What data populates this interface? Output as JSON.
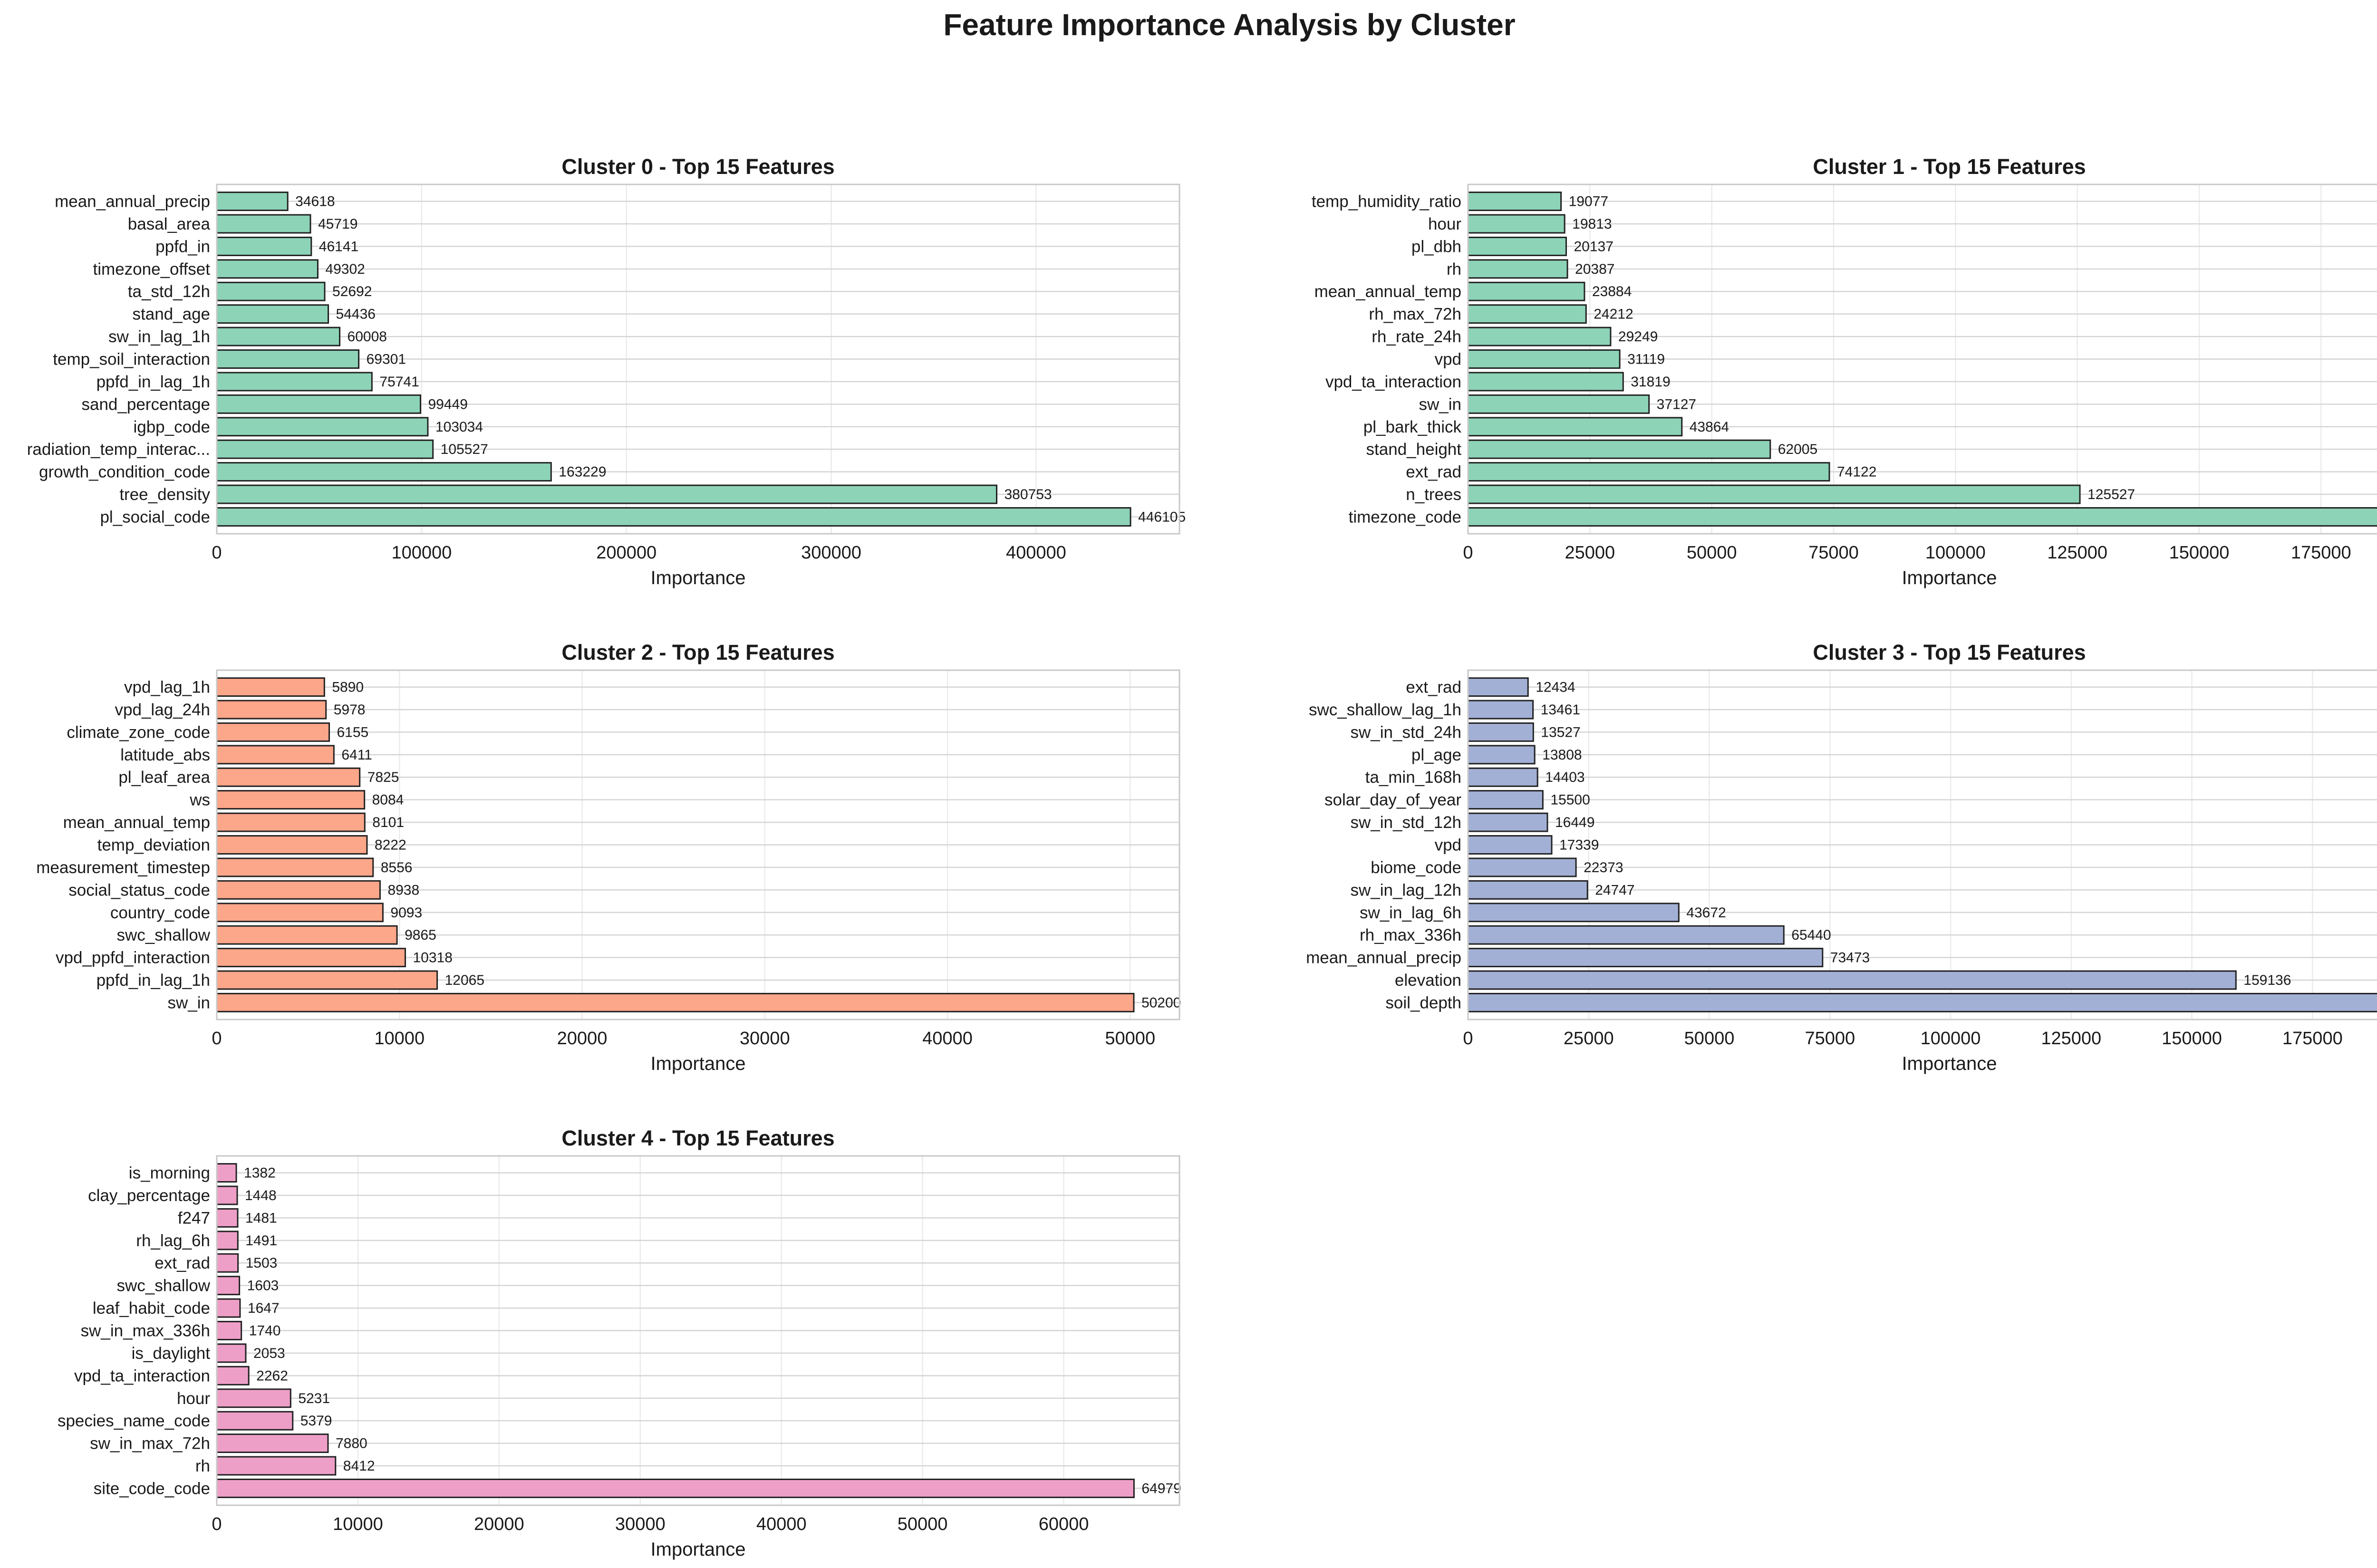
{
  "figure": {
    "title": "Feature Importance Analysis by Cluster"
  },
  "chart_data": [
    {
      "type": "bar",
      "orientation": "horizontal",
      "title": "Cluster 0 - Top 15 Features",
      "xlabel": "Importance",
      "ylabel": "",
      "color": "#8dd3b8",
      "xlim": [
        0,
        470000
      ],
      "xticks": [
        0,
        100000,
        200000,
        300000,
        400000
      ],
      "grid": true,
      "categories": [
        "mean_annual_precip",
        "basal_area",
        "ppfd_in",
        "timezone_offset",
        "ta_std_12h",
        "stand_age",
        "sw_in_lag_1h",
        "temp_soil_interaction",
        "ppfd_in_lag_1h",
        "sand_percentage",
        "igbp_code",
        "radiation_temp_interac...",
        "growth_condition_code",
        "tree_density",
        "pl_social_code"
      ],
      "values": [
        34618,
        45719,
        46141,
        49302,
        52692,
        54436,
        60008,
        69301,
        75741,
        99449,
        103034,
        105527,
        163229,
        380753,
        446105
      ]
    },
    {
      "type": "bar",
      "orientation": "horizontal",
      "title": "Cluster 1 - Top 15 Features",
      "xlabel": "Importance",
      "ylabel": "",
      "color": "#8dd3b8",
      "xlim": [
        0,
        197500
      ],
      "xticks": [
        0,
        25000,
        50000,
        75000,
        100000,
        125000,
        150000,
        175000
      ],
      "grid": true,
      "categories": [
        "temp_humidity_ratio",
        "hour",
        "pl_dbh",
        "rh",
        "mean_annual_temp",
        "rh_max_72h",
        "rh_rate_24h",
        "vpd",
        "vpd_ta_interaction",
        "sw_in",
        "pl_bark_thick",
        "stand_height",
        "ext_rad",
        "n_trees",
        "timezone_code"
      ],
      "values": [
        19077,
        19813,
        20137,
        20387,
        23884,
        24212,
        29249,
        31119,
        31819,
        37127,
        43864,
        62005,
        74122,
        125527,
        188050
      ]
    },
    {
      "type": "bar",
      "orientation": "horizontal",
      "title": "Cluster 2 - Top 15 Features",
      "xlabel": "Importance",
      "ylabel": "",
      "color": "#fca68a",
      "xlim": [
        0,
        52700
      ],
      "xticks": [
        0,
        10000,
        20000,
        30000,
        40000,
        50000
      ],
      "grid": true,
      "categories": [
        "vpd_lag_1h",
        "vpd_lag_24h",
        "climate_zone_code",
        "latitude_abs",
        "pl_leaf_area",
        "ws",
        "mean_annual_temp",
        "temp_deviation",
        "measurement_timestep",
        "social_status_code",
        "country_code",
        "swc_shallow",
        "vpd_ppfd_interaction",
        "ppfd_in_lag_1h",
        "sw_in"
      ],
      "values": [
        5890,
        5978,
        6155,
        6411,
        7825,
        8084,
        8101,
        8222,
        8556,
        8938,
        9093,
        9865,
        10318,
        12065,
        50200
      ]
    },
    {
      "type": "bar",
      "orientation": "horizontal",
      "title": "Cluster 3 - Top 15 Features",
      "xlabel": "Importance",
      "ylabel": "",
      "color": "#a3b0d6",
      "xlim": [
        0,
        199500
      ],
      "xticks": [
        0,
        25000,
        50000,
        75000,
        100000,
        125000,
        150000,
        175000
      ],
      "grid": true,
      "categories": [
        "ext_rad",
        "swc_shallow_lag_1h",
        "sw_in_std_24h",
        "pl_age",
        "ta_min_168h",
        "solar_day_of_year",
        "sw_in_std_12h",
        "vpd",
        "biome_code",
        "sw_in_lag_12h",
        "sw_in_lag_6h",
        "rh_max_336h",
        "mean_annual_precip",
        "elevation",
        "soil_depth"
      ],
      "values": [
        12434,
        13461,
        13527,
        13808,
        14403,
        15500,
        16449,
        17339,
        22373,
        24747,
        43672,
        65440,
        73473,
        159136,
        190060
      ]
    },
    {
      "type": "bar",
      "orientation": "horizontal",
      "title": "Cluster 4 - Top 15 Features",
      "xlabel": "Importance",
      "ylabel": "",
      "color": "#ee9fc8",
      "xlim": [
        0,
        68200
      ],
      "xticks": [
        0,
        10000,
        20000,
        30000,
        40000,
        50000,
        60000
      ],
      "grid": true,
      "categories": [
        "is_morning",
        "clay_percentage",
        "f247",
        "rh_lag_6h",
        "ext_rad",
        "swc_shallow",
        "leaf_habit_code",
        "sw_in_max_336h",
        "is_daylight",
        "vpd_ta_interaction",
        "hour",
        "species_name_code",
        "sw_in_max_72h",
        "rh",
        "site_code_code"
      ],
      "values": [
        1382,
        1448,
        1481,
        1491,
        1503,
        1603,
        1647,
        1740,
        2053,
        2262,
        5231,
        5379,
        7880,
        8412,
        64979
      ]
    }
  ]
}
